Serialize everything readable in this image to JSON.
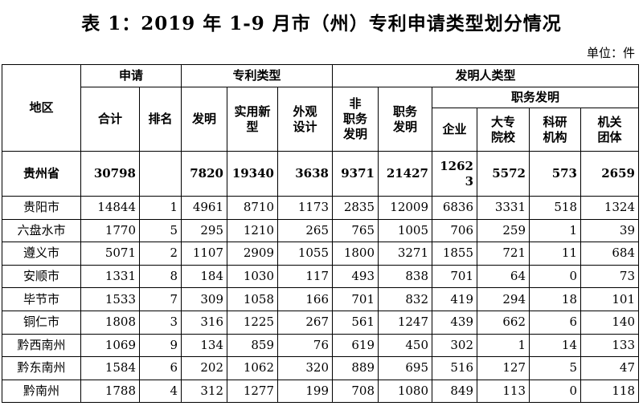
{
  "title": "表 1：2019 年 1-9 月市（州）专利申请类型划分情况",
  "unit": "单位：件",
  "headers": {
    "region": "地区",
    "group_apply": "申请",
    "group_patent_type": "专利类型",
    "group_inventor_type": "发明人类型",
    "group_service_invention": "职务发明",
    "total": "合计",
    "rank": "排名",
    "invention": "发明",
    "utility": "实用新\n型",
    "design": "外观\n设计",
    "non_service": "非\n职务\n发明",
    "service": "职务\n发明",
    "enterprise": "企业",
    "university": "大专\n院校",
    "research": "科研\n机构",
    "agency": "机关\n团体"
  },
  "rows": [
    {
      "region": "贵州省",
      "total": "30798",
      "rank": "",
      "invention": "7820",
      "utility": "19340",
      "design": "3638",
      "non_service": "9371",
      "service": "21427",
      "enterprise": "1262\n3",
      "university": "5572",
      "research": "573",
      "agency": "2659"
    },
    {
      "region": "贵阳市",
      "total": "14844",
      "rank": "1",
      "invention": "4961",
      "utility": "8710",
      "design": "1173",
      "non_service": "2835",
      "service": "12009",
      "enterprise": "6836",
      "university": "3331",
      "research": "518",
      "agency": "1324"
    },
    {
      "region": "六盘水市",
      "total": "1770",
      "rank": "5",
      "invention": "295",
      "utility": "1210",
      "design": "265",
      "non_service": "765",
      "service": "1005",
      "enterprise": "706",
      "university": "259",
      "research": "1",
      "agency": "39"
    },
    {
      "region": "遵义市",
      "total": "5071",
      "rank": "2",
      "invention": "1107",
      "utility": "2909",
      "design": "1055",
      "non_service": "1800",
      "service": "3271",
      "enterprise": "1855",
      "university": "721",
      "research": "11",
      "agency": "684"
    },
    {
      "region": "安顺市",
      "total": "1331",
      "rank": "8",
      "invention": "184",
      "utility": "1030",
      "design": "117",
      "non_service": "493",
      "service": "838",
      "enterprise": "701",
      "university": "64",
      "research": "0",
      "agency": "73"
    },
    {
      "region": "毕节市",
      "total": "1533",
      "rank": "7",
      "invention": "309",
      "utility": "1058",
      "design": "166",
      "non_service": "701",
      "service": "832",
      "enterprise": "419",
      "university": "294",
      "research": "18",
      "agency": "101"
    },
    {
      "region": "铜仁市",
      "total": "1808",
      "rank": "3",
      "invention": "316",
      "utility": "1225",
      "design": "267",
      "non_service": "561",
      "service": "1247",
      "enterprise": "439",
      "university": "662",
      "research": "6",
      "agency": "140"
    },
    {
      "region": "黔西南州",
      "total": "1069",
      "rank": "9",
      "invention": "134",
      "utility": "859",
      "design": "76",
      "non_service": "619",
      "service": "450",
      "enterprise": "302",
      "university": "1",
      "research": "14",
      "agency": "133"
    },
    {
      "region": "黔东南州",
      "total": "1584",
      "rank": "6",
      "invention": "202",
      "utility": "1062",
      "design": "320",
      "non_service": "889",
      "service": "695",
      "enterprise": "516",
      "university": "127",
      "research": "5",
      "agency": "47"
    },
    {
      "region": "黔南州",
      "total": "1788",
      "rank": "4",
      "invention": "312",
      "utility": "1277",
      "design": "199",
      "non_service": "708",
      "service": "1080",
      "enterprise": "849",
      "university": "113",
      "research": "0",
      "agency": "118"
    }
  ]
}
